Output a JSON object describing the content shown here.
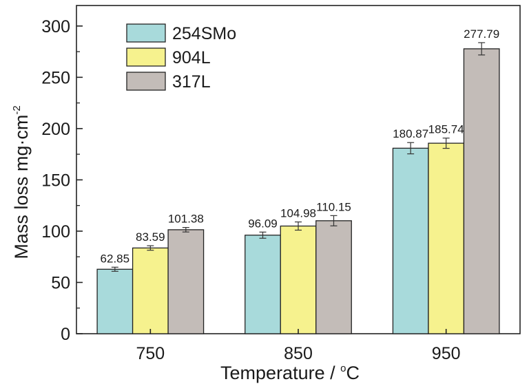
{
  "chart_data": {
    "type": "bar",
    "categories": [
      "750",
      "850",
      "950"
    ],
    "series": [
      {
        "name": "254SMo",
        "color": "#a8dadb",
        "values": [
          62.85,
          96.09,
          180.87
        ],
        "errors": [
          2.0,
          3.0,
          5.5
        ],
        "labels": [
          "62.85",
          "96.09",
          "180.87"
        ]
      },
      {
        "name": "904L",
        "color": "#f6f28e",
        "values": [
          83.59,
          104.98,
          185.74
        ],
        "errors": [
          2.2,
          4.0,
          5.0
        ],
        "labels": [
          "83.59",
          "104.98",
          "185.74"
        ]
      },
      {
        "name": "317L",
        "color": "#c3bcb8",
        "values": [
          101.38,
          110.15,
          277.79
        ],
        "errors": [
          2.2,
          5.0,
          6.0
        ],
        "labels": [
          "101.38",
          "110.15",
          "277.79"
        ]
      }
    ],
    "yticks": [
      0,
      50,
      100,
      150,
      200,
      250,
      300
    ],
    "ytick_labels": [
      "0",
      "50",
      "100",
      "150",
      "200",
      "250",
      "300"
    ],
    "ylim": [
      0,
      320
    ],
    "xlabel": "Temperature / ",
    "xlabel_unit_sup": "o",
    "xlabel_unit": "C",
    "ylabel": "Mass loss mg·cm",
    "ylabel_sup": "-2",
    "legend_position": "top-left",
    "grid": false
  }
}
